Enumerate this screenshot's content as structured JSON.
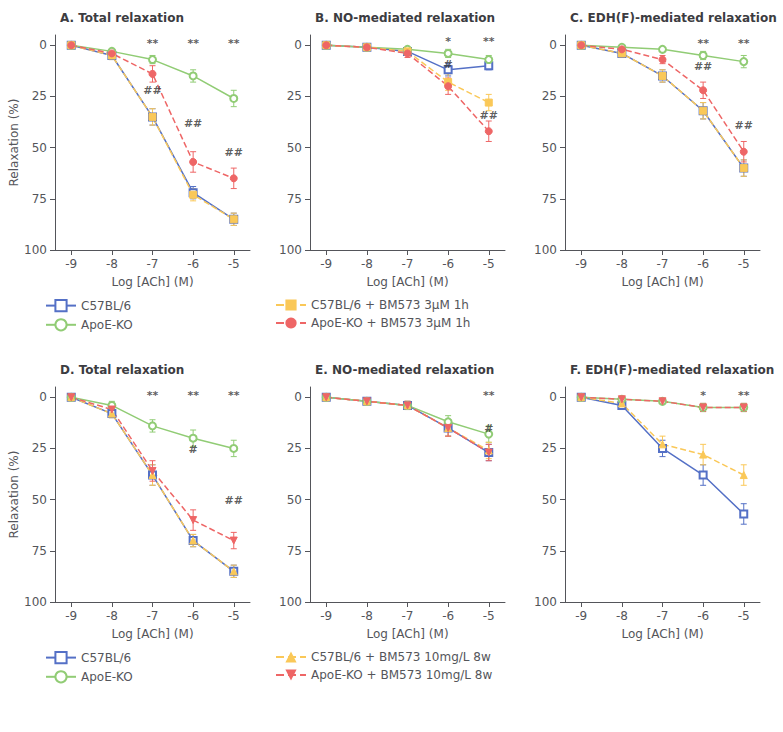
{
  "chart_data": [
    {
      "type": "line",
      "title": "A. Total relaxation",
      "xlabel": "Log [ACh] (M)",
      "ylabel": "Relaxation (%)",
      "x": [
        -9,
        -8,
        -7,
        -6,
        -5
      ],
      "xlim": [
        -9.4,
        -4.6
      ],
      "xticks": [
        -9,
        -8,
        -7,
        -6,
        -5
      ],
      "ylim": [
        100,
        -5
      ],
      "yticks": [
        0,
        25,
        50,
        75,
        100
      ],
      "grid": false,
      "legend": "bottom",
      "series": [
        {
          "name": "C57BL/6",
          "color": "#5470c6",
          "marker": "square-open",
          "line_style": "solid",
          "values": [
            0,
            5,
            35,
            72,
            85
          ],
          "errors": [
            0,
            2,
            4,
            3,
            3
          ]
        },
        {
          "name": "ApoE-KO",
          "color": "#91cc75",
          "marker": "circle-open",
          "line_style": "solid",
          "values": [
            0,
            3,
            7,
            15,
            26
          ],
          "errors": [
            0,
            1,
            2,
            3,
            4
          ]
        },
        {
          "name": "C57BL/6 + BM573 3μM 1h",
          "color": "#fac858",
          "marker": "square",
          "line_style": "dashed",
          "values": [
            0,
            5,
            35,
            73,
            85
          ],
          "errors": [
            0,
            2,
            4,
            3,
            3
          ]
        },
        {
          "name": "ApoE-KO + BM573 3μM 1h",
          "color": "#ee6666",
          "marker": "circle",
          "line_style": "dashed",
          "values": [
            0,
            4,
            14,
            57,
            65
          ],
          "errors": [
            0,
            1,
            4,
            5,
            5
          ]
        }
      ],
      "annotations": [
        {
          "x": -7,
          "y": 3,
          "text": "**"
        },
        {
          "x": -6,
          "y": 3,
          "text": "**"
        },
        {
          "x": -5,
          "y": 3,
          "text": "**"
        },
        {
          "x": -7,
          "y": 26,
          "text": "##"
        },
        {
          "x": -6,
          "y": 42,
          "text": "##"
        },
        {
          "x": -5,
          "y": 56,
          "text": "##"
        }
      ]
    },
    {
      "type": "line",
      "title": "B. NO-mediated relaxation",
      "xlabel": "Log [ACh] (M)",
      "x": [
        -9,
        -8,
        -7,
        -6,
        -5
      ],
      "xlim": [
        -9.4,
        -4.6
      ],
      "xticks": [
        -9,
        -8,
        -7,
        -6,
        -5
      ],
      "ylim": [
        100,
        -5
      ],
      "yticks": [
        0,
        25,
        50,
        75,
        100
      ],
      "grid": false,
      "legend": "bottom",
      "series": [
        {
          "name": "C57BL/6",
          "color": "#5470c6",
          "marker": "square-open",
          "line_style": "solid",
          "values": [
            0,
            1,
            3,
            12,
            10
          ],
          "errors": [
            0,
            1,
            1,
            3,
            2
          ]
        },
        {
          "name": "ApoE-KO",
          "color": "#91cc75",
          "marker": "circle-open",
          "line_style": "solid",
          "values": [
            0,
            1,
            2,
            4,
            7
          ],
          "errors": [
            0,
            1,
            1,
            2,
            2
          ]
        },
        {
          "name": "C57BL/6 + BM573 3μM 1h",
          "color": "#fac858",
          "marker": "square",
          "line_style": "dashed",
          "values": [
            0,
            1,
            3,
            18,
            28
          ],
          "errors": [
            0,
            1,
            1,
            4,
            4
          ]
        },
        {
          "name": "ApoE-KO + BM573 3μM 1h",
          "color": "#ee6666",
          "marker": "circle",
          "line_style": "dashed",
          "values": [
            0,
            1,
            4,
            20,
            42
          ],
          "errors": [
            0,
            1,
            2,
            4,
            5
          ]
        }
      ],
      "annotations": [
        {
          "x": -6,
          "y": 2,
          "text": "*"
        },
        {
          "x": -5,
          "y": 2,
          "text": "**"
        },
        {
          "x": -6,
          "y": 13,
          "text": "#"
        },
        {
          "x": -5,
          "y": 38,
          "text": "##"
        }
      ]
    },
    {
      "type": "line",
      "title": "C. EDH(F)-mediated relaxation",
      "xlabel": "Log [ACh] (M)",
      "x": [
        -9,
        -8,
        -7,
        -6,
        -5
      ],
      "xlim": [
        -9.4,
        -4.6
      ],
      "xticks": [
        -9,
        -8,
        -7,
        -6,
        -5
      ],
      "ylim": [
        100,
        -5
      ],
      "yticks": [
        0,
        25,
        50,
        75,
        100
      ],
      "grid": false,
      "legend": "bottom",
      "series": [
        {
          "name": "C57BL/6",
          "color": "#5470c6",
          "marker": "square-open",
          "line_style": "solid",
          "values": [
            0,
            4,
            15,
            32,
            60
          ],
          "errors": [
            0,
            2,
            3,
            4,
            4
          ]
        },
        {
          "name": "ApoE-KO",
          "color": "#91cc75",
          "marker": "circle-open",
          "line_style": "solid",
          "values": [
            0,
            1,
            2,
            5,
            8
          ],
          "errors": [
            0,
            1,
            1,
            2,
            3
          ]
        },
        {
          "name": "C57BL/6 + BM573 3μM 1h",
          "color": "#fac858",
          "marker": "square",
          "line_style": "dashed",
          "values": [
            0,
            4,
            15,
            32,
            60
          ],
          "errors": [
            0,
            2,
            3,
            4,
            4
          ]
        },
        {
          "name": "ApoE-KO + BM573 3μM 1h",
          "color": "#ee6666",
          "marker": "circle",
          "line_style": "dashed",
          "values": [
            0,
            2,
            7,
            22,
            52
          ],
          "errors": [
            0,
            1,
            2,
            4,
            5
          ]
        }
      ],
      "annotations": [
        {
          "x": -6,
          "y": 3,
          "text": "**"
        },
        {
          "x": -5,
          "y": 3,
          "text": "**"
        },
        {
          "x": -6,
          "y": 14,
          "text": "##"
        },
        {
          "x": -5,
          "y": 43,
          "text": "##"
        }
      ]
    },
    {
      "type": "line",
      "title": "D. Total relaxation",
      "xlabel": "Log [ACh] (M)",
      "ylabel": "Relaxation (%)",
      "x": [
        -9,
        -8,
        -7,
        -6,
        -5
      ],
      "xlim": [
        -9.4,
        -4.6
      ],
      "xticks": [
        -9,
        -8,
        -7,
        -6,
        -5
      ],
      "ylim": [
        100,
        -5
      ],
      "yticks": [
        0,
        25,
        50,
        75,
        100
      ],
      "grid": false,
      "legend": "bottom",
      "series": [
        {
          "name": "C57BL/6",
          "color": "#5470c6",
          "marker": "square-open",
          "line_style": "solid",
          "values": [
            0,
            8,
            38,
            70,
            85
          ],
          "errors": [
            0,
            2,
            5,
            3,
            3
          ]
        },
        {
          "name": "ApoE-KO",
          "color": "#91cc75",
          "marker": "circle-open",
          "line_style": "solid",
          "values": [
            0,
            4,
            14,
            20,
            25
          ],
          "errors": [
            0,
            2,
            3,
            4,
            4
          ]
        },
        {
          "name": "C57BL/6 + BM573 10mg/L 8w",
          "color": "#fac858",
          "marker": "triangle-up",
          "line_style": "dashed",
          "values": [
            0,
            8,
            38,
            70,
            85
          ],
          "errors": [
            0,
            2,
            5,
            3,
            3
          ]
        },
        {
          "name": "ApoE-KO + BM573 10mg/L 8w",
          "color": "#ee6666",
          "marker": "triangle-down",
          "line_style": "dashed",
          "values": [
            0,
            6,
            36,
            60,
            70
          ],
          "errors": [
            0,
            2,
            5,
            5,
            4
          ]
        }
      ],
      "annotations": [
        {
          "x": -7,
          "y": 3,
          "text": "**"
        },
        {
          "x": -6,
          "y": 3,
          "text": "**"
        },
        {
          "x": -5,
          "y": 3,
          "text": "**"
        },
        {
          "x": -6,
          "y": 29,
          "text": "#"
        },
        {
          "x": -5,
          "y": 54,
          "text": "##"
        }
      ]
    },
    {
      "type": "line",
      "title": "E. NO-mediated relaxation",
      "xlabel": "Log [ACh] (M)",
      "x": [
        -9,
        -8,
        -7,
        -6,
        -5
      ],
      "xlim": [
        -9.4,
        -4.6
      ],
      "xticks": [
        -9,
        -8,
        -7,
        -6,
        -5
      ],
      "ylim": [
        100,
        -5
      ],
      "yticks": [
        0,
        25,
        50,
        75,
        100
      ],
      "grid": false,
      "legend": "bottom",
      "series": [
        {
          "name": "C57BL/6",
          "color": "#5470c6",
          "marker": "square-open",
          "line_style": "solid",
          "values": [
            0,
            2,
            4,
            15,
            27
          ],
          "errors": [
            0,
            1,
            2,
            4,
            4
          ]
        },
        {
          "name": "ApoE-KO",
          "color": "#91cc75",
          "marker": "circle-open",
          "line_style": "solid",
          "values": [
            0,
            2,
            4,
            12,
            18
          ],
          "errors": [
            0,
            1,
            2,
            3,
            4
          ]
        },
        {
          "name": "C57BL/6 + BM573 10mg/L 8w",
          "color": "#fac858",
          "marker": "triangle-up",
          "line_style": "dashed",
          "values": [
            0,
            2,
            4,
            15,
            26
          ],
          "errors": [
            0,
            1,
            2,
            4,
            4
          ]
        },
        {
          "name": "ApoE-KO + BM573 10mg/L 8w",
          "color": "#ee6666",
          "marker": "triangle-down",
          "line_style": "dashed",
          "values": [
            0,
            2,
            4,
            15,
            27
          ],
          "errors": [
            0,
            1,
            2,
            4,
            4
          ]
        }
      ],
      "annotations": [
        {
          "x": -5,
          "y": 3,
          "text": "**"
        },
        {
          "x": -5,
          "y": 19,
          "text": "#"
        }
      ]
    },
    {
      "type": "line",
      "title": "F. EDH(F)-mediated relaxation",
      "xlabel": "Log [ACh] (M)",
      "x": [
        -9,
        -8,
        -7,
        -6,
        -5
      ],
      "xlim": [
        -9.4,
        -4.6
      ],
      "xticks": [
        -9,
        -8,
        -7,
        -6,
        -5
      ],
      "ylim": [
        100,
        -5
      ],
      "yticks": [
        0,
        25,
        50,
        75,
        100
      ],
      "grid": false,
      "legend": "bottom",
      "series": [
        {
          "name": "C57BL/6",
          "color": "#5470c6",
          "marker": "square-open",
          "line_style": "solid",
          "values": [
            0,
            4,
            25,
            38,
            57
          ],
          "errors": [
            0,
            2,
            4,
            5,
            5
          ]
        },
        {
          "name": "ApoE-KO",
          "color": "#91cc75",
          "marker": "circle-open",
          "line_style": "solid",
          "values": [
            0,
            1,
            2,
            5,
            5
          ],
          "errors": [
            0,
            1,
            1,
            2,
            2
          ]
        },
        {
          "name": "C57BL/6 + BM573 10mg/L 8w",
          "color": "#fac858",
          "marker": "triangle-up",
          "line_style": "dashed",
          "values": [
            0,
            3,
            23,
            28,
            38
          ],
          "errors": [
            0,
            1,
            4,
            5,
            5
          ]
        },
        {
          "name": "ApoE-KO + BM573 10mg/L 8w",
          "color": "#ee6666",
          "marker": "triangle-down",
          "line_style": "dashed",
          "values": [
            0,
            1,
            2,
            5,
            5
          ],
          "errors": [
            0,
            1,
            1,
            2,
            2
          ]
        }
      ],
      "annotations": [
        {
          "x": -6,
          "y": 3,
          "text": "*"
        },
        {
          "x": -5,
          "y": 3,
          "text": "**"
        }
      ]
    }
  ]
}
